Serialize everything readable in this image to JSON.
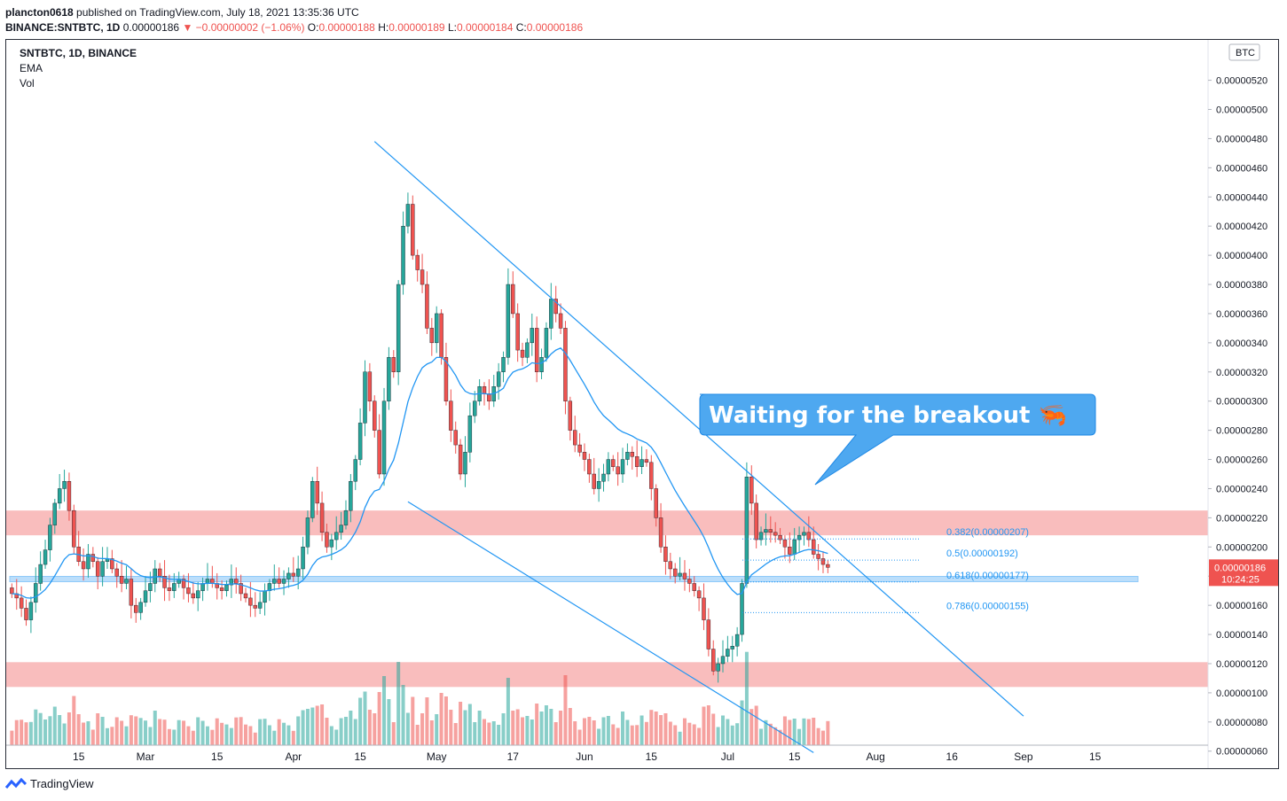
{
  "header": {
    "author": "plancton0618",
    "published": "published on TradingView.com, July 18, 2021 13:35:36 UTC",
    "symbol": "BINANCE:SNTBTC, 1D",
    "last": "0.00000186",
    "change": "−0.00000002 (−1.06%)",
    "o_label": "O:",
    "o": "0.00000188",
    "h_label": "H:",
    "h": "0.00000189",
    "l_label": "L:",
    "l": "0.00000184",
    "c_label": "C:",
    "c": "0.00000186"
  },
  "legend": {
    "title": "SNTBTC, 1D, BINANCE",
    "ema": "EMA",
    "vol": "Vol"
  },
  "currency_badge": "BTC",
  "price_badge": {
    "value": "0.00000186",
    "countdown": "10:24:25"
  },
  "annotation": {
    "text": "Waiting for the breakout 🦐"
  },
  "footer": {
    "brand": "TradingView"
  },
  "colors": {
    "up": "#26a69a",
    "down": "#ef5350",
    "line": "#2196f3",
    "zone": "#f8b6b6",
    "band": "#bbdefb"
  },
  "chart_data": {
    "type": "candlestick",
    "y_axis_ticks": [
      "0.00000520",
      "0.00000500",
      "0.00000480",
      "0.00000460",
      "0.00000440",
      "0.00000420",
      "0.00000400",
      "0.00000380",
      "0.00000360",
      "0.00000340",
      "0.00000320",
      "0.00000300",
      "0.00000280",
      "0.00000260",
      "0.00000240",
      "0.00000220",
      "0.00000200",
      "0.00000180",
      "0.00000160",
      "0.00000140",
      "0.00000120",
      "0.00000100",
      "0.00000080",
      "0.00000060"
    ],
    "y_tick_values": [
      520,
      500,
      480,
      460,
      440,
      420,
      400,
      380,
      360,
      340,
      320,
      300,
      280,
      260,
      240,
      220,
      200,
      180,
      160,
      140,
      120,
      100,
      80,
      60
    ],
    "x_axis_ticks": [
      "15",
      "Mar",
      "15",
      "Apr",
      "15",
      "May",
      "17",
      "Jun",
      "15",
      "Jul",
      "15",
      "Aug",
      "16",
      "Sep",
      "15"
    ],
    "x_tick_days": [
      15,
      29,
      44,
      60,
      74,
      90,
      106,
      121,
      135,
      151,
      165,
      182,
      198,
      213,
      228
    ],
    "x_origin": "2021-02-01",
    "zones": [
      {
        "from": 208,
        "to": 225
      },
      {
        "from": 104,
        "to": 121
      }
    ],
    "support_band": 178,
    "fib_levels": [
      {
        "label": "0.382(0.00000207)",
        "value": 205.5
      },
      {
        "label": "0.5(0.00000192)",
        "value": 191
      },
      {
        "label": "0.618(0.00000177)",
        "value": 176
      },
      {
        "label": "0.786(0.00000155)",
        "value": 155
      }
    ],
    "trendlines": [
      {
        "d1": 77,
        "p1": 478,
        "d2": 213,
        "p2": 84
      },
      {
        "d1": 84,
        "p1": 231,
        "d2": 169,
        "p2": 59
      }
    ],
    "closes": [
      168,
      165,
      158,
      150,
      162,
      175,
      188,
      198,
      215,
      230,
      240,
      245,
      225,
      200,
      190,
      185,
      195,
      190,
      180,
      190,
      192,
      185,
      180,
      175,
      178,
      160,
      155,
      162,
      170,
      175,
      185,
      180,
      172,
      170,
      175,
      178,
      172,
      168,
      165,
      170,
      175,
      178,
      175,
      172,
      170,
      174,
      178,
      175,
      168,
      165,
      160,
      158,
      162,
      170,
      175,
      178,
      175,
      178,
      182,
      180,
      185,
      200,
      220,
      245,
      230,
      210,
      200,
      205,
      210,
      215,
      225,
      245,
      260,
      285,
      320,
      300,
      280,
      250,
      300,
      330,
      320,
      380,
      420,
      435,
      400,
      390,
      380,
      350,
      340,
      360,
      330,
      300,
      280,
      270,
      250,
      265,
      290,
      300,
      310,
      305,
      300,
      310,
      320,
      330,
      380,
      360,
      335,
      330,
      340,
      350,
      320,
      330,
      350,
      370,
      360,
      350,
      300,
      280,
      270,
      265,
      260,
      250,
      240,
      245,
      250,
      260,
      255,
      250,
      260,
      265,
      262,
      255,
      260,
      258,
      240,
      220,
      200,
      190,
      185,
      180,
      182,
      178,
      175,
      170,
      165,
      150,
      130,
      115,
      120,
      125,
      130,
      132,
      140,
      175,
      248,
      230,
      205,
      210,
      212,
      210,
      208,
      205,
      200,
      195,
      205,
      208,
      210,
      205,
      195,
      192,
      188,
      186
    ]
  }
}
